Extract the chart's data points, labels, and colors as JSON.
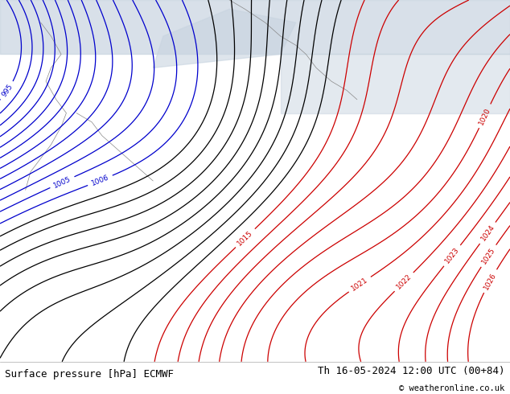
{
  "title_left": "Surface pressure [hPa] ECMWF",
  "title_right": "Th 16-05-2024 12:00 UTC (00+84)",
  "copyright": "© weatheronline.co.uk",
  "land_color": "#b5d68a",
  "sea_color": "#c8d4e0",
  "figsize": [
    6.34,
    4.9
  ],
  "dpi": 100,
  "footer_fontsize": 9,
  "levels_red": [
    1015,
    1016,
    1017,
    1018,
    1019,
    1020,
    1021,
    1022,
    1023,
    1024,
    1025,
    1026
  ],
  "levels_blue": [
    995,
    996,
    997,
    998,
    999,
    1000,
    1001,
    1002,
    1003,
    1004,
    1005,
    1006
  ],
  "levels_black": [
    1007,
    1008,
    1009,
    1010,
    1011,
    1012,
    1013,
    1014
  ],
  "color_red": "#cc0000",
  "color_blue": "#0000cc",
  "color_black": "#000000",
  "linewidth": 0.9,
  "label_fontsize": 6.5
}
